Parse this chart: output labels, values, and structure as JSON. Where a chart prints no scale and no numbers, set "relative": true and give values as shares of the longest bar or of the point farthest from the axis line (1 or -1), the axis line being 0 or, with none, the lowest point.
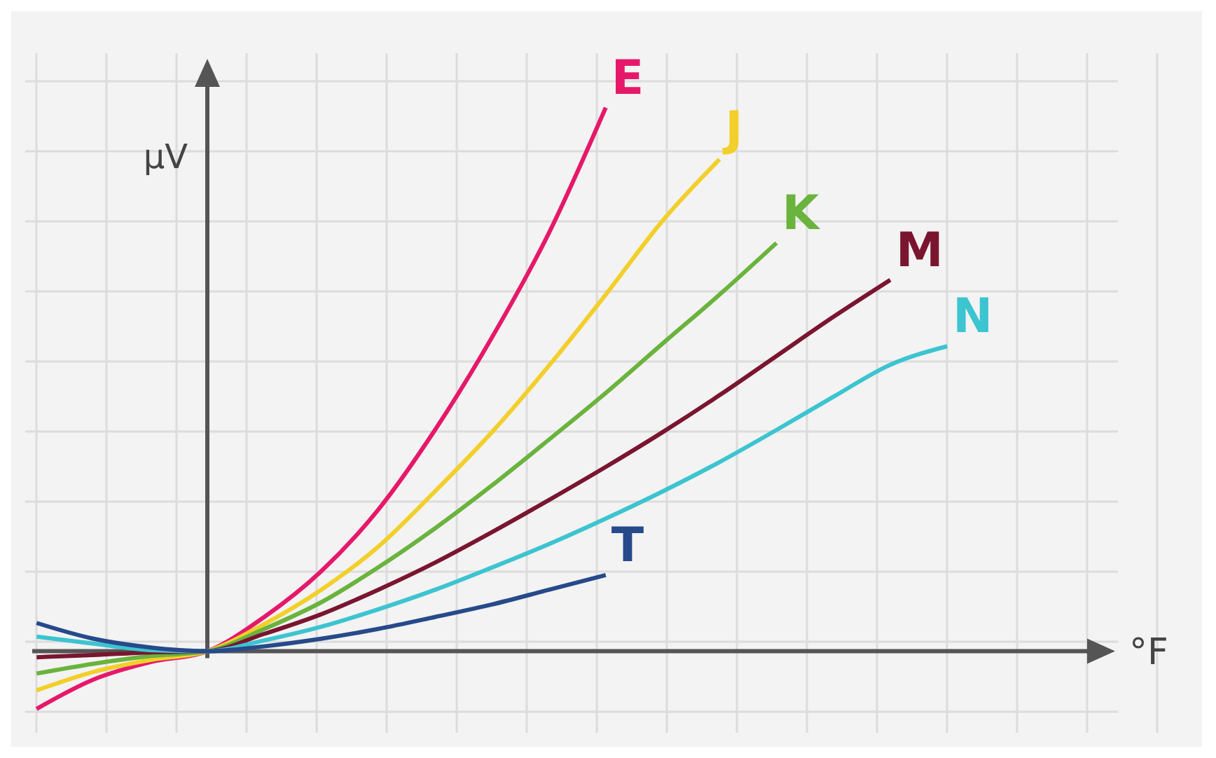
{
  "chart_data": {
    "type": "line",
    "relative": true,
    "xlabel": "°F",
    "ylabel": "μV",
    "grid": true,
    "marker": "none",
    "line_style": "solid",
    "categories": [
      null,
      null,
      null,
      null,
      null,
      null,
      null,
      null,
      null,
      null,
      null,
      null,
      null,
      null,
      null,
      null,
      null,
      null,
      null
    ],
    "series": [
      {
        "name": "E",
        "color": "#e6186a",
        "values": [
          -0.106,
          -0.052,
          -0.02,
          0,
          0.063,
          0.147,
          0.26,
          0.407,
          0.577,
          0.769,
          1,
          null,
          null,
          null,
          null,
          null,
          null,
          null,
          null
        ]
      },
      {
        "name": "J",
        "color": "#f2cf2a",
        "values": [
          -0.072,
          -0.038,
          -0.016,
          0,
          0.05,
          0.113,
          0.192,
          0.294,
          0.403,
          0.525,
          0.656,
          0.792,
          0.905,
          null,
          null,
          null,
          null,
          null,
          null
        ]
      },
      {
        "name": "K",
        "color": "#6ab33d",
        "values": [
          -0.041,
          -0.023,
          -0.009,
          0,
          0.041,
          0.09,
          0.154,
          0.226,
          0.305,
          0.389,
          0.475,
          0.566,
          0.656,
          0.751,
          null,
          null,
          null,
          null,
          null
        ]
      },
      {
        "name": "M",
        "color": "#7a1530",
        "values": [
          -0.011,
          -0.007,
          -0.002,
          0,
          0.032,
          0.068,
          0.113,
          0.163,
          0.219,
          0.278,
          0.339,
          0.403,
          0.471,
          0.543,
          0.615,
          0.683,
          null,
          null,
          null
        ]
      },
      {
        "name": "N",
        "color": "#3cc4d0",
        "values": [
          0.027,
          0.014,
          0.002,
          0,
          0.02,
          0.045,
          0.077,
          0.113,
          0.154,
          0.197,
          0.244,
          0.294,
          0.348,
          0.407,
          0.468,
          0.527,
          0.561,
          null,
          null
        ]
      },
      {
        "name": "T",
        "color": "#264a8a",
        "values": [
          0.052,
          0.023,
          0.007,
          0,
          0.009,
          0.023,
          0.041,
          0.063,
          0.086,
          0.113,
          0.14,
          null,
          null,
          null,
          null,
          null,
          null,
          null,
          null
        ]
      }
    ]
  }
}
